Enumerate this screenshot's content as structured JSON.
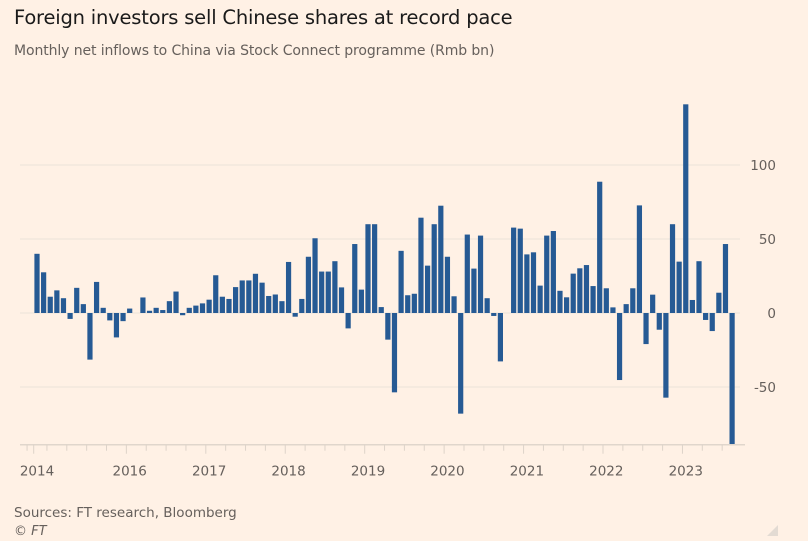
{
  "header": {
    "title": "Foreign investors sell Chinese shares at record pace",
    "subtitle": "Monthly net inflows to China via Stock Connect programme (Rmb bn)"
  },
  "footer": {
    "source": "Sources: FT research, Bloomberg",
    "copyright": "© FT"
  },
  "colors": {
    "background": "#fff1e5",
    "bar": "#265a94",
    "grid": "#ebe2d9",
    "text": "#66605c"
  },
  "chart_data": {
    "type": "bar",
    "title": "Foreign investors sell Chinese shares at record pace",
    "subtitle": "Monthly net inflows to China via Stock Connect programme (Rmb bn)",
    "xlabel": "",
    "ylabel": "Rmb bn",
    "ylim": [
      -89,
      142
    ],
    "yticks": [
      100,
      50,
      0,
      -50
    ],
    "ytick_labels": [
      "100",
      "50",
      "0",
      "-50"
    ],
    "y_axis_position": "right",
    "grid": true,
    "legend": "none",
    "start_month": "2014-11",
    "xtick_labels": [
      {
        "label": "2014",
        "index": 0
      },
      {
        "label": "2016",
        "index": 14
      },
      {
        "label": "2017",
        "index": 26
      },
      {
        "label": "2018",
        "index": 38
      },
      {
        "label": "2019",
        "index": 50
      },
      {
        "label": "2020",
        "index": 62
      },
      {
        "label": "2021",
        "index": 74
      },
      {
        "label": "2022",
        "index": 86
      },
      {
        "label": "2023",
        "index": 98
      }
    ],
    "series": [
      {
        "name": "Net inflows",
        "values": [
          40,
          27.5,
          11,
          15.3,
          10,
          -4,
          17,
          6,
          -31.5,
          21,
          3.5,
          -5,
          -16.5,
          -5.5,
          3,
          0,
          10.5,
          1.5,
          3.5,
          2,
          8,
          14.5,
          -1.5,
          3.5,
          5,
          6.5,
          9,
          25.5,
          11,
          9.5,
          17.5,
          22,
          22,
          26.5,
          20.5,
          11.5,
          12.5,
          8,
          34.5,
          -2.5,
          9.5,
          38,
          50.5,
          28,
          28,
          35,
          17.3,
          -10.4,
          46.6,
          15.8,
          60,
          60,
          4,
          -18,
          -53.6,
          42,
          12,
          13,
          64.4,
          32,
          60,
          72.5,
          38,
          11.3,
          -68,
          53,
          30,
          52.3,
          10,
          -2,
          -32.7,
          0,
          57.7,
          57,
          39.6,
          41,
          18.5,
          52.3,
          55.4,
          15,
          10.6,
          26.6,
          30.2,
          32.4,
          18.2,
          88.7,
          16.7,
          3.8,
          -45.3,
          6,
          16.7,
          72.7,
          -21,
          12.4,
          -11.3,
          -57.2,
          60,
          34.7,
          141,
          8.8,
          35,
          -4.7,
          -12.2,
          13.7,
          46.6,
          -89
        ]
      }
    ]
  }
}
